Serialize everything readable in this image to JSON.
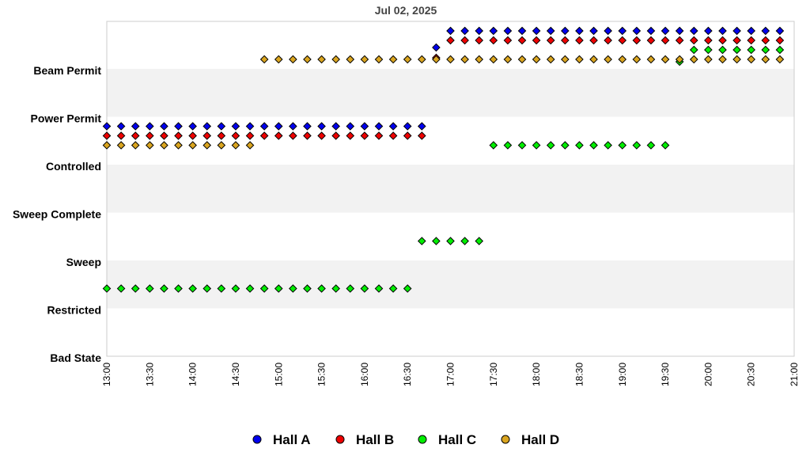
{
  "chart_data": {
    "type": "scatter",
    "title": "Jul 02, 2025",
    "xlabel": "",
    "ylabel": "",
    "x_ticks": [
      "13:00",
      "13:30",
      "14:00",
      "14:30",
      "15:00",
      "15:30",
      "16:00",
      "16:30",
      "17:00",
      "17:30",
      "18:00",
      "18:30",
      "19:00",
      "19:30",
      "20:00",
      "20:30",
      "21:00"
    ],
    "y_categories": [
      "Bad State",
      "Restricted",
      "Sweep",
      "Sweep Complete",
      "Controlled",
      "Power Permit",
      "Beam Permit"
    ],
    "x_range": [
      "13:00",
      "21:00"
    ],
    "grid": true,
    "legend_position": "bottom",
    "series": [
      {
        "name": "Hall A",
        "color": "#0000ee",
        "segments": [
          {
            "level": "Power Permit",
            "from": "13:00",
            "to": "16:40",
            "step_min": 10
          },
          {
            "level": "Beam Permit",
            "from": "16:50",
            "to": "16:50",
            "step_min": 10
          },
          {
            "level": "Beam Permit",
            "from": "17:00",
            "to": "20:50",
            "step_min": 10
          }
        ]
      },
      {
        "name": "Hall B",
        "color": "#ee0000",
        "segments": [
          {
            "level": "Power Permit",
            "from": "13:00",
            "to": "16:40",
            "step_min": 10
          },
          {
            "level": "Beam Permit",
            "from": "16:50",
            "to": "16:50",
            "step_min": 10
          },
          {
            "level": "Beam Permit",
            "from": "17:00",
            "to": "20:50",
            "step_min": 10
          }
        ]
      },
      {
        "name": "Hall C",
        "color": "#00ee00",
        "segments": [
          {
            "level": "Restricted",
            "from": "13:00",
            "to": "16:30",
            "step_min": 10
          },
          {
            "level": "Sweep Complete",
            "from": "16:40",
            "to": "17:20",
            "step_min": 10
          },
          {
            "level": "Power Permit",
            "from": "17:30",
            "to": "19:30",
            "step_min": 10
          },
          {
            "level": "Beam Permit",
            "from": "19:40",
            "to": "19:40",
            "step_min": 10
          },
          {
            "level": "Beam Permit",
            "from": "19:50",
            "to": "20:50",
            "step_min": 10
          }
        ]
      },
      {
        "name": "Hall D",
        "color": "#daa520",
        "segments": [
          {
            "level": "Power Permit",
            "from": "13:00",
            "to": "14:40",
            "step_min": 10
          },
          {
            "level": "Beam Permit",
            "from": "14:50",
            "to": "20:50",
            "step_min": 10
          }
        ]
      }
    ]
  }
}
